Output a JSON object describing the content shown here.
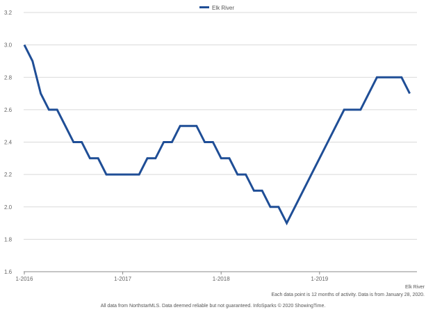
{
  "chart_data": {
    "type": "line",
    "title": "",
    "xlabel": "",
    "ylabel": "",
    "ylim": [
      1.6,
      3.2
    ],
    "yticks": [
      "1.6",
      "1.8",
      "2.0",
      "2.2",
      "2.4",
      "2.6",
      "2.8",
      "3.0",
      "3.2"
    ],
    "xticks": [
      {
        "label": "1-2016",
        "month_index": 0
      },
      {
        "label": "1-2017",
        "month_index": 12
      },
      {
        "label": "1-2018",
        "month_index": 24
      },
      {
        "label": "1-2019",
        "month_index": 36
      }
    ],
    "x_month_count": 48,
    "grid": true,
    "legend": "top-center",
    "series": [
      {
        "name": "Elk River",
        "color": "#1f4e96",
        "values": [
          3.0,
          2.9,
          2.7,
          2.6,
          2.6,
          2.5,
          2.4,
          2.4,
          2.3,
          2.3,
          2.2,
          2.2,
          2.2,
          2.2,
          2.2,
          2.3,
          2.3,
          2.4,
          2.4,
          2.5,
          2.5,
          2.5,
          2.4,
          2.4,
          2.3,
          2.3,
          2.2,
          2.2,
          2.1,
          2.1,
          2.0,
          2.0,
          1.9,
          2.0,
          2.1,
          2.2,
          2.3,
          2.4,
          2.5,
          2.6,
          2.6,
          2.6,
          2.7,
          2.8,
          2.8,
          2.8,
          2.8,
          2.7
        ]
      }
    ]
  },
  "series_end_label": "Elk River",
  "note": "Each data point is 12 months of activity. Data is from January 28, 2020.",
  "footer": "All data from NorthstarMLS. Data deemed reliable but not guaranteed. InfoSparks © 2020 ShowingTime."
}
